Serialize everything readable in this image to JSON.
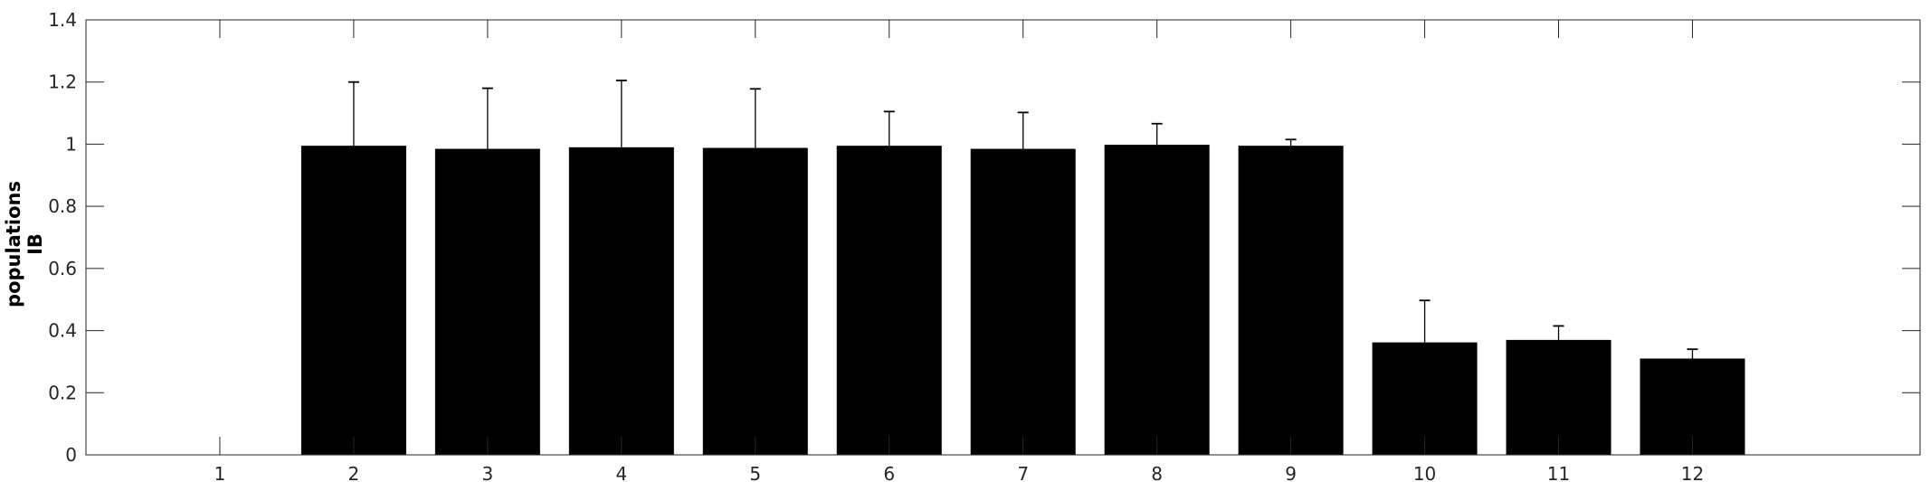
{
  "chart_data": {
    "type": "bar",
    "title": "",
    "xlabel": "",
    "ylabel_lines": [
      "populations",
      "IB"
    ],
    "categories": [
      "1",
      "2",
      "3",
      "4",
      "5",
      "6",
      "7",
      "8",
      "9",
      "10",
      "11",
      "12"
    ],
    "values": [
      0,
      0.995,
      0.985,
      0.99,
      0.988,
      0.995,
      0.985,
      0.998,
      0.995,
      0.362,
      0.37,
      0.31
    ],
    "error_upper": [
      0,
      0.205,
      0.195,
      0.215,
      0.19,
      0.11,
      0.117,
      0.068,
      0.02,
      0.135,
      0.045,
      0.03
    ],
    "xlim": [
      0,
      13.7
    ],
    "ylim": [
      0,
      1.4
    ],
    "yticks": [
      "0",
      "0.2",
      "0.4",
      "0.6",
      "0.8",
      "1",
      "1.2",
      "1.4"
    ],
    "grid": false,
    "colors": {
      "bar": "#000000",
      "axis": "#262626",
      "errorbar": "#000000"
    }
  }
}
